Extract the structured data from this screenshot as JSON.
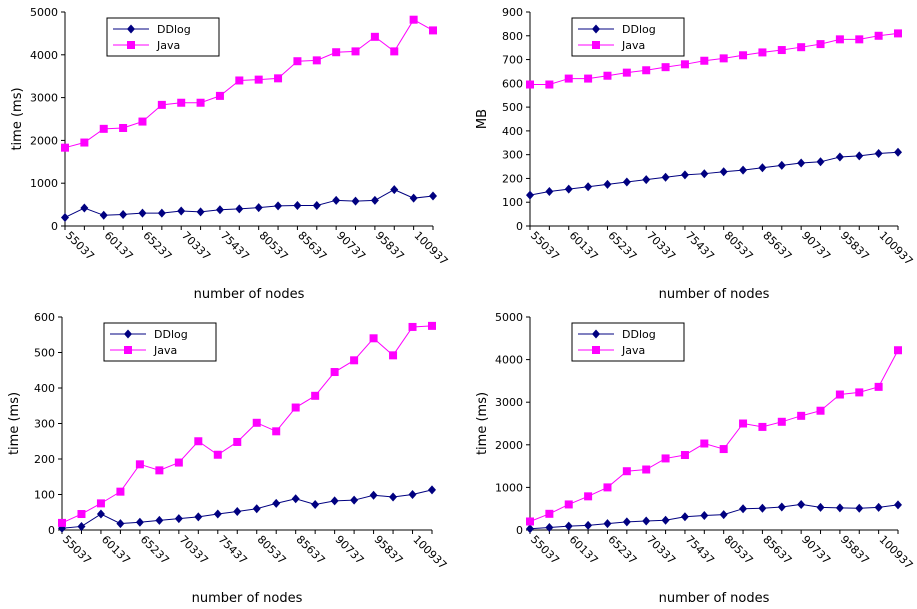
{
  "chart_data": [
    {
      "type": "line",
      "ylabel": "time (ms)",
      "xlabel": "number of nodes",
      "categories": [
        "55037",
        null,
        "60137",
        null,
        "65237",
        null,
        "70337",
        null,
        "75437",
        null,
        "80537",
        null,
        "85637",
        null,
        "90737",
        null,
        "95837",
        null,
        "100937",
        null
      ],
      "ylim": [
        0,
        5000
      ],
      "yticks": [
        0,
        1000,
        2000,
        3000,
        4000,
        5000
      ],
      "legend": "upper left",
      "series": [
        {
          "name": "DDlog",
          "color": "#000080",
          "marker": "diamond",
          "values": [
            200,
            420,
            250,
            270,
            300,
            300,
            350,
            330,
            380,
            400,
            430,
            470,
            480,
            480,
            600,
            580,
            600,
            850,
            650,
            700
          ]
        },
        {
          "name": "Java",
          "color": "#ff00ff",
          "marker": "square",
          "values": [
            1830,
            1950,
            2270,
            2290,
            2440,
            2830,
            2880,
            2880,
            3040,
            3400,
            3420,
            3450,
            3850,
            3870,
            4060,
            4080,
            4420,
            4080,
            4820,
            4570
          ]
        }
      ]
    },
    {
      "type": "line",
      "ylabel": "MB",
      "xlabel": "number of nodes",
      "categories": [
        "55037",
        null,
        "60137",
        null,
        "65237",
        null,
        "70337",
        null,
        "75437",
        null,
        "80537",
        null,
        "85637",
        null,
        "90737",
        null,
        "95837",
        null,
        "100937",
        null
      ],
      "ylim": [
        0,
        900
      ],
      "yticks": [
        0,
        100,
        200,
        300,
        400,
        500,
        600,
        700,
        800,
        900
      ],
      "legend": "upper left",
      "series": [
        {
          "name": "DDlog",
          "color": "#000080",
          "marker": "diamond",
          "values": [
            130,
            145,
            155,
            165,
            175,
            185,
            195,
            205,
            215,
            220,
            228,
            235,
            245,
            255,
            265,
            270,
            290,
            295,
            305,
            310
          ]
        },
        {
          "name": "Java",
          "color": "#ff00ff",
          "marker": "square",
          "values": [
            595,
            595,
            620,
            620,
            632,
            645,
            655,
            668,
            680,
            695,
            705,
            718,
            730,
            740,
            752,
            765,
            785,
            785,
            800,
            810
          ]
        }
      ]
    },
    {
      "type": "line",
      "ylabel": "time (ms)",
      "xlabel": "number of nodes",
      "categories": [
        "55037",
        null,
        "60137",
        null,
        "65237",
        null,
        "70337",
        null,
        "75437",
        null,
        "80537",
        null,
        "85637",
        null,
        "90737",
        null,
        "95837",
        null,
        "100937",
        null
      ],
      "ylim": [
        0,
        600
      ],
      "yticks": [
        0,
        100,
        200,
        300,
        400,
        500,
        600
      ],
      "legend": "upper left",
      "series": [
        {
          "name": "DDlog",
          "color": "#000080",
          "marker": "diamond",
          "values": [
            5,
            10,
            45,
            18,
            22,
            27,
            32,
            37,
            45,
            52,
            60,
            75,
            88,
            72,
            82,
            84,
            98,
            93,
            100,
            113
          ]
        },
        {
          "name": "Java",
          "color": "#ff00ff",
          "marker": "square",
          "values": [
            20,
            45,
            75,
            108,
            185,
            168,
            190,
            250,
            212,
            248,
            302,
            278,
            345,
            378,
            445,
            478,
            540,
            492,
            572,
            575
          ]
        }
      ]
    },
    {
      "type": "line",
      "ylabel": "time (ms)",
      "xlabel": "number of nodes",
      "categories": [
        "55037",
        null,
        "60137",
        null,
        "65237",
        null,
        "70337",
        null,
        "75437",
        null,
        "80537",
        null,
        "85637",
        null,
        "90737",
        null,
        "95837",
        null,
        "100937",
        null
      ],
      "ylim": [
        0,
        5000
      ],
      "yticks": [
        0,
        1000,
        2000,
        3000,
        4000,
        5000
      ],
      "legend": "upper left",
      "series": [
        {
          "name": "DDlog",
          "color": "#000080",
          "marker": "diamond",
          "values": [
            30,
            60,
            90,
            110,
            150,
            190,
            210,
            230,
            310,
            340,
            360,
            500,
            510,
            540,
            600,
            530,
            520,
            510,
            530,
            590
          ]
        },
        {
          "name": "Java",
          "color": "#ff00ff",
          "marker": "square",
          "values": [
            200,
            380,
            600,
            790,
            1000,
            1380,
            1420,
            1680,
            1760,
            2030,
            1900,
            2500,
            2420,
            2540,
            2680,
            2800,
            3180,
            3230,
            3360,
            4220
          ]
        }
      ]
    }
  ]
}
